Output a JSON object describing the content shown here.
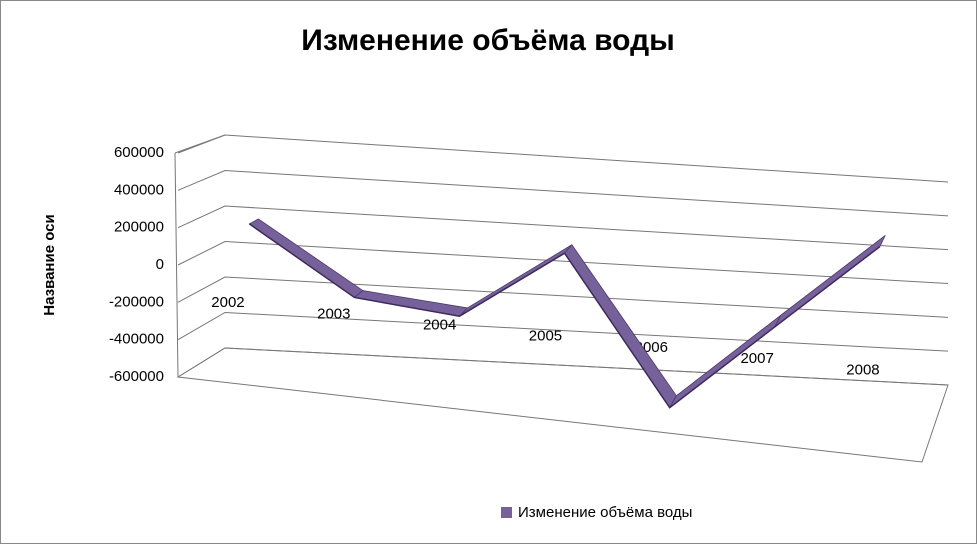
{
  "chart_data": {
    "type": "line3d",
    "title": "Изменение объёма  воды",
    "y_label": "Название оси",
    "categories": [
      "2002",
      "2003",
      "2004",
      "2005",
      "2006",
      "2007",
      "2008"
    ],
    "series": [
      {
        "name": "Изменение объёма  воды",
        "color": "#77619a",
        "values": [
          200000,
          -150000,
          -200000,
          200000,
          -600000,
          -100000,
          400000
        ]
      }
    ],
    "ylim": [
      -600000,
      600000
    ],
    "yticks": [
      -600000,
      -400000,
      -200000,
      0,
      200000,
      400000,
      600000
    ],
    "grid": true,
    "legend": "bottom"
  }
}
